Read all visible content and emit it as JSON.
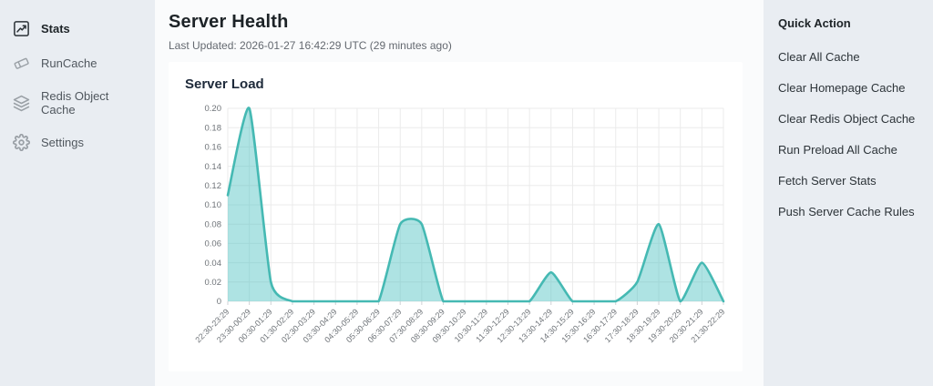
{
  "sidebar": {
    "items": [
      {
        "label": "Stats",
        "icon": "chart-line-icon",
        "active": true
      },
      {
        "label": "RunCache",
        "icon": "eraser-icon",
        "active": false
      },
      {
        "label": "Redis Object Cache",
        "icon": "layers-icon",
        "active": false
      },
      {
        "label": "Settings",
        "icon": "gear-icon",
        "active": false
      }
    ]
  },
  "header": {
    "title": "Server Health",
    "last_updated": "Last Updated: 2026-01-27 16:42:29 UTC (29 minutes ago)"
  },
  "quick_actions": {
    "heading": "Quick Action",
    "items": [
      "Clear All Cache",
      "Clear Homepage Cache",
      "Clear Redis Object Cache",
      "Run Preload All Cache",
      "Fetch Server Stats",
      "Push Server Cache Rules"
    ]
  },
  "chart_data": {
    "type": "area",
    "title": "Server Load",
    "categories": [
      "22:30-23:29",
      "23:30-00:29",
      "00:30-01:29",
      "01:30-02:29",
      "02:30-03:29",
      "03:30-04:29",
      "04:30-05:29",
      "05:30-06:29",
      "06:30-07:29",
      "07:30-08:29",
      "08:30-09:29",
      "09:30-10:29",
      "10:30-11:29",
      "11:30-12:29",
      "12:30-13:29",
      "13:30-14:29",
      "14:30-15:29",
      "15:30-16:29",
      "16:30-17:29",
      "17:30-18:29",
      "18:30-19:29",
      "19:30-20:29",
      "20:30-21:29",
      "21:30-22:29"
    ],
    "values": [
      0.11,
      0.2,
      0.02,
      0,
      0,
      0,
      0,
      0,
      0.08,
      0.08,
      0,
      0,
      0,
      0,
      0,
      0.03,
      0,
      0,
      0,
      0.02,
      0.08,
      0,
      0.04,
      0
    ],
    "xlabel": "",
    "ylabel": "",
    "ylim": [
      0,
      0.2
    ],
    "ytick_step": 0.02,
    "grid": true,
    "legend": "none",
    "line_color": "#45b9b3",
    "fill_color": "rgba(75,192,192,0.45)",
    "grid_color": "#ebebeb",
    "tick_color": "#6e7378"
  },
  "colors": {
    "sidebar_bg": "#e9edf2",
    "main_bg": "#fafbfc",
    "panel_bg": "#ffffff",
    "text_dark": "#1d2327",
    "text_gray": "#646970",
    "accent_teal": "#45b9b3"
  }
}
